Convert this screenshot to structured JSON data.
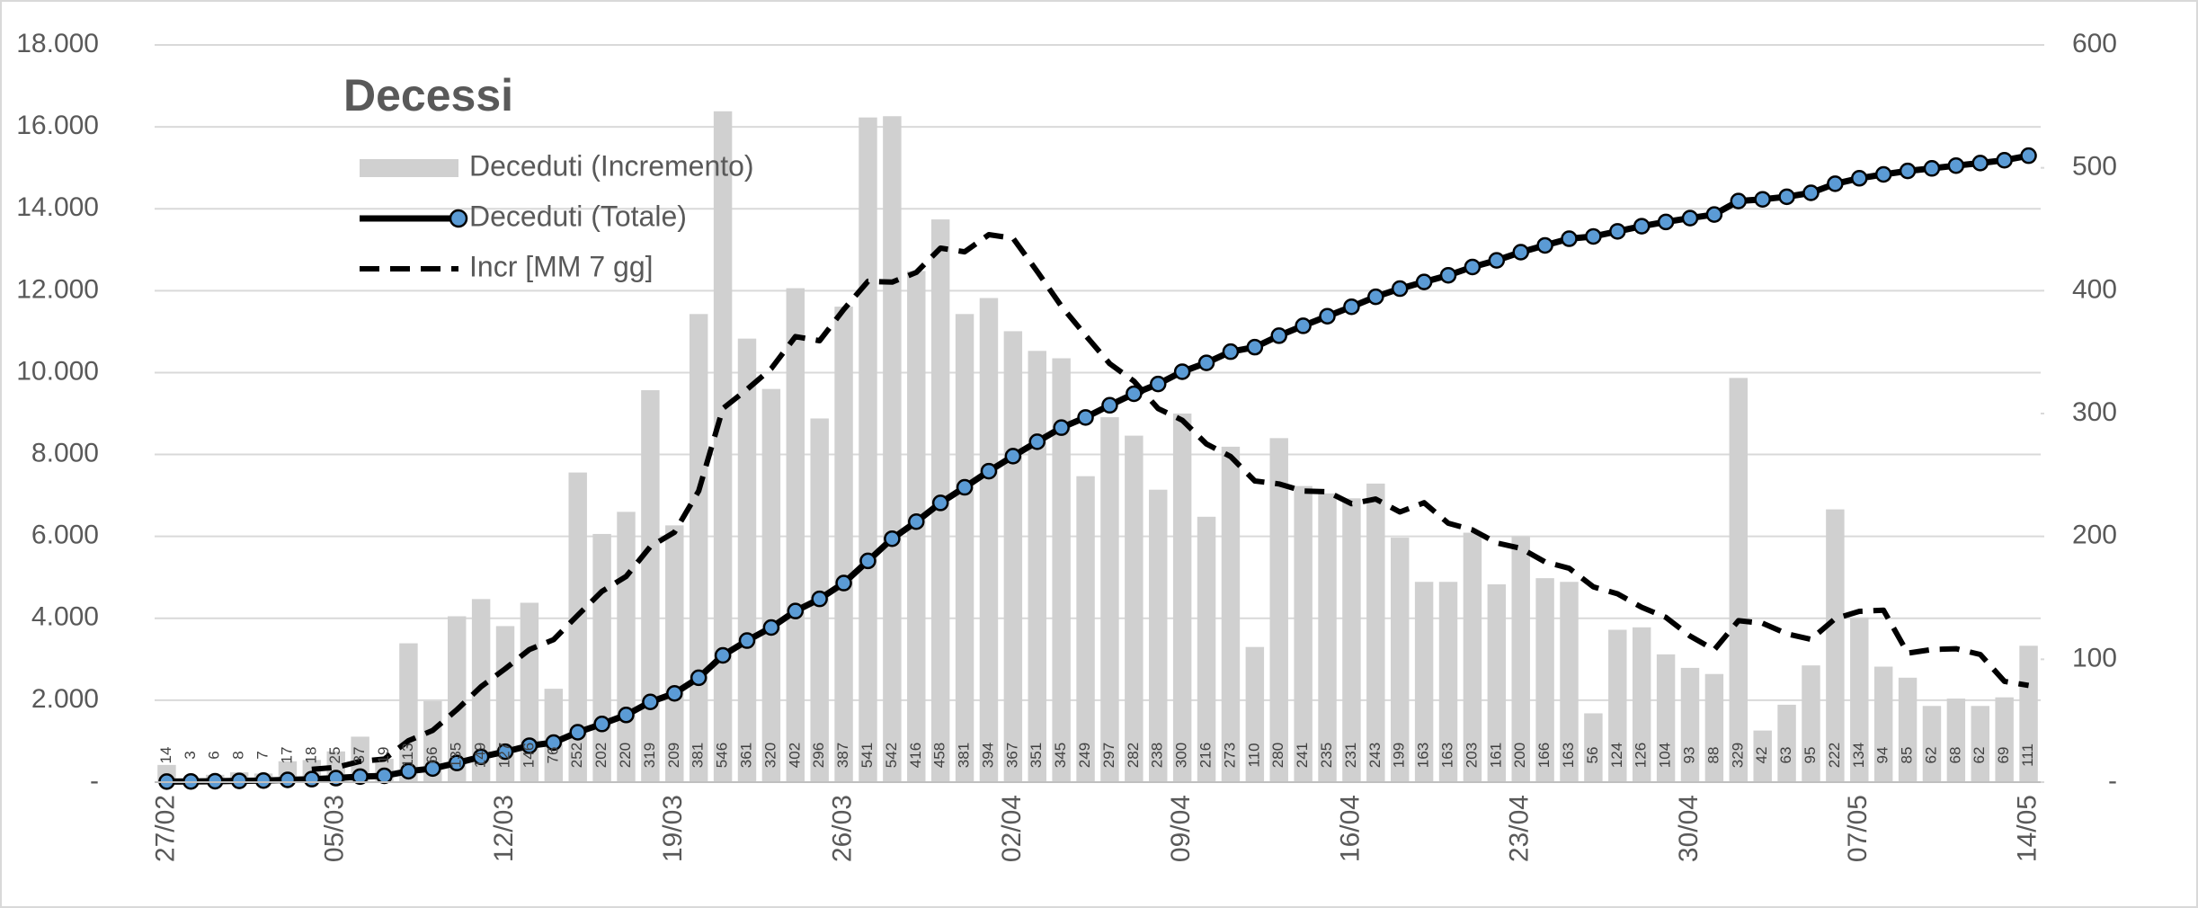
{
  "chart_data": {
    "type": "combo",
    "title": "Decessi",
    "categories": [
      "27/02",
      null,
      null,
      null,
      null,
      null,
      null,
      "05/03",
      null,
      null,
      null,
      null,
      null,
      null,
      "12/03",
      null,
      null,
      null,
      null,
      null,
      null,
      "19/03",
      null,
      null,
      null,
      null,
      null,
      null,
      "26/03",
      null,
      null,
      null,
      null,
      null,
      null,
      "02/04",
      null,
      null,
      null,
      null,
      null,
      null,
      "09/04",
      null,
      null,
      null,
      null,
      null,
      null,
      "16/04",
      null,
      null,
      null,
      null,
      null,
      null,
      "23/04",
      null,
      null,
      null,
      null,
      null,
      null,
      "30/04",
      null,
      null,
      null,
      null,
      null,
      null,
      "07/05",
      null,
      null,
      null,
      null,
      null,
      null,
      "14/05"
    ],
    "series": [
      {
        "name": "Deceduti (Incremento)",
        "type": "bar",
        "axis": "y2",
        "color": "#d0d0d0",
        "values": [
          14,
          3,
          6,
          8,
          7,
          17,
          18,
          25,
          37,
          19,
          113,
          66,
          135,
          149,
          127,
          146,
          76,
          252,
          202,
          220,
          319,
          209,
          381,
          546,
          361,
          320,
          402,
          296,
          387,
          541,
          542,
          416,
          458,
          381,
          394,
          367,
          351,
          345,
          249,
          297,
          282,
          238,
          300,
          216,
          273,
          110,
          280,
          241,
          235,
          231,
          243,
          199,
          163,
          163,
          203,
          161,
          200,
          166,
          163,
          56,
          124,
          126,
          104,
          93,
          88,
          329,
          42,
          63,
          95,
          222,
          134,
          94,
          85,
          62,
          68,
          62,
          69,
          111
        ]
      },
      {
        "name": "Deceduti (Totale)",
        "type": "line",
        "axis": "y",
        "color": "#000000",
        "marker_color": "#5b9bd5",
        "values": [
          14,
          17,
          23,
          31,
          38,
          55,
          73,
          98,
          135,
          154,
          267,
          333,
          468,
          617,
          744,
          890,
          966,
          1218,
          1420,
          1640,
          1959,
          2168,
          2549,
          3095,
          3456,
          3776,
          4178,
          4474,
          4861,
          5402,
          5944,
          6360,
          6818,
          7199,
          7593,
          7960,
          8311,
          8656,
          8905,
          9202,
          9484,
          9722,
          10022,
          10238,
          10511,
          10621,
          10901,
          11142,
          11377,
          11608,
          11851,
          12050,
          12213,
          12376,
          12579,
          12740,
          12940,
          13106,
          13269,
          13325,
          13449,
          13575,
          13679,
          13772,
          13860,
          14189,
          14231,
          14294,
          14389,
          14611,
          14745,
          14839,
          14924,
          14986,
          15054,
          15116,
          15185,
          15296
        ]
      },
      {
        "name": "Incr [MM 7 gg]",
        "type": "line",
        "dashed": true,
        "axis": "y2",
        "color": "#000000",
        "values": [
          null,
          null,
          null,
          null,
          null,
          null,
          10.4,
          12.0,
          16.9,
          18.7,
          33.7,
          42.1,
          59.0,
          77.7,
          92.3,
          107.9,
          116.0,
          135.9,
          155.3,
          167.4,
          191.7,
          203.4,
          237.0,
          304.1,
          319.7,
          336.6,
          362.6,
          359.3,
          384.7,
          407.6,
          407.0,
          414.9,
          434.6,
          431.6,
          445.6,
          442.7,
          415.6,
          387.4,
          363.6,
          340.6,
          326.4,
          304.1,
          294.6,
          275.3,
          265.0,
          245.1,
          242.7,
          236.9,
          236.4,
          226.6,
          230.4,
          219.9,
          227.4,
          210.7,
          205.3,
          194.7,
          190.3,
          179.3,
          174.1,
          158.9,
          153.3,
          142.3,
          134.1,
          118.9,
          107.7,
          131.4,
          129.4,
          120.7,
          116.3,
          133.1,
          139.0,
          139.9,
          105.0,
          107.9,
          108.6,
          103.9,
          82.0,
          78.7
        ]
      }
    ],
    "ylim": [
      0,
      18000
    ],
    "yticks": [
      {
        "value": 0,
        "label": "-"
      },
      {
        "value": 2000,
        "label": "2.000"
      },
      {
        "value": 4000,
        "label": "4.000"
      },
      {
        "value": 6000,
        "label": "6.000"
      },
      {
        "value": 8000,
        "label": "8.000"
      },
      {
        "value": 10000,
        "label": "10.000"
      },
      {
        "value": 12000,
        "label": "12.000"
      },
      {
        "value": 14000,
        "label": "14.000"
      },
      {
        "value": 16000,
        "label": "16.000"
      },
      {
        "value": 18000,
        "label": "18.000"
      }
    ],
    "y2lim": [
      0,
      600
    ],
    "y2ticks": [
      {
        "value": 0,
        "label": "-"
      },
      100,
      200,
      300,
      400,
      500,
      600
    ],
    "grid": true,
    "legend": "top-left"
  }
}
